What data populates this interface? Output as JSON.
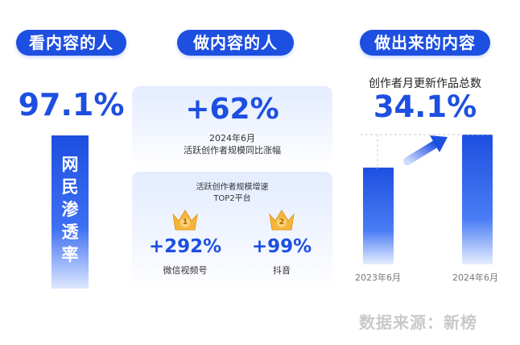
{
  "headers": {
    "watchers": "看内容的人",
    "makers": "做内容的人",
    "output": "做出来的内容"
  },
  "watchers": {
    "value": "97.1%",
    "label": "网民渗透率",
    "label_chars": [
      "网",
      "民",
      "渗",
      "透",
      "率"
    ]
  },
  "makers": {
    "growth_value": "+62%",
    "growth_line1": "2024年6月",
    "growth_line2": "活跃创作者规模同比涨幅",
    "top_title_line1": "活跃创作者规模增速",
    "top_title_line2": "TOP2平台",
    "platforms": [
      {
        "rank": "1",
        "value": "+292%",
        "name": "微信视频号"
      },
      {
        "rank": "2",
        "value": "+99%",
        "name": "抖音"
      }
    ]
  },
  "output": {
    "subtitle": "创作者月更新作品总数",
    "value": "34.1%"
  },
  "chart_data": {
    "type": "bar",
    "categories": [
      "2023年6月",
      "2024年6月"
    ],
    "values": [
      74.6,
      100
    ],
    "ylim": [
      0,
      100
    ],
    "annotation": "34.1%",
    "grid": false
  },
  "source": "数据来源：新榜",
  "colors": {
    "brand_blue": "#1d4fe0",
    "crown_gold": "#f5b63d",
    "source_gray": "#c9c9c9"
  }
}
